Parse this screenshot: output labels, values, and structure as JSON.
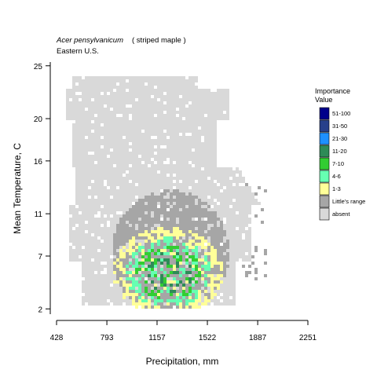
{
  "chart_data": {
    "type": "heatmap",
    "title_species": "Acer pensylvanicum",
    "title_common": "( striped maple )",
    "subtitle": "Eastern U.S.",
    "xlabel": "Precipitation, mm",
    "ylabel": "Mean Temperature, C",
    "xlim": [
      428,
      2251
    ],
    "ylim": [
      1.5,
      25.8
    ],
    "x_ticks": [
      "428",
      "793",
      "1157",
      "1522",
      "1887",
      "2251"
    ],
    "x_tick_values": [
      428,
      793,
      1157,
      1522,
      1887,
      2251
    ],
    "y_ticks": [
      "2",
      "7",
      "11",
      "16",
      "20",
      "25"
    ],
    "y_tick_values": [
      2,
      7,
      11,
      16,
      20,
      25
    ],
    "legend": {
      "title_line1": "Importance",
      "title_line2": "Value",
      "placement": "right",
      "entries": [
        {
          "label": "51-100",
          "color": "#00008B"
        },
        {
          "label": "31-50",
          "color": "#27408B"
        },
        {
          "label": "21-30",
          "color": "#1E90FF"
        },
        {
          "label": "11-20",
          "color": "#2E8B57"
        },
        {
          "label": "7-10",
          "color": "#32CD32"
        },
        {
          "label": "4-6",
          "color": "#66FFB2"
        },
        {
          "label": "1-3",
          "color": "#FFFF99"
        },
        {
          "label": "Little's range",
          "color": "#A6A6A6"
        },
        {
          "label": "absent",
          "color": "#D9D9D9"
        }
      ]
    },
    "regions": [
      {
        "category": "absent",
        "x_range": [
          630,
          1800
        ],
        "y_range": [
          3,
          24
        ]
      },
      {
        "category": "Little's range",
        "x_range": [
          1000,
          1800
        ],
        "y_range": [
          3,
          15
        ]
      },
      {
        "category": "1-3",
        "x_range": [
          1050,
          1650
        ],
        "y_range": [
          3,
          13
        ]
      },
      {
        "category": "4-6",
        "x_range": [
          1100,
          1500
        ],
        "y_range": [
          4,
          10
        ]
      },
      {
        "category": "7-10",
        "x_range": [
          1150,
          1400
        ],
        "y_range": [
          4,
          8
        ]
      },
      {
        "category": "11-20",
        "x_range": [
          1180,
          1350
        ],
        "y_range": [
          4,
          7
        ]
      }
    ]
  }
}
